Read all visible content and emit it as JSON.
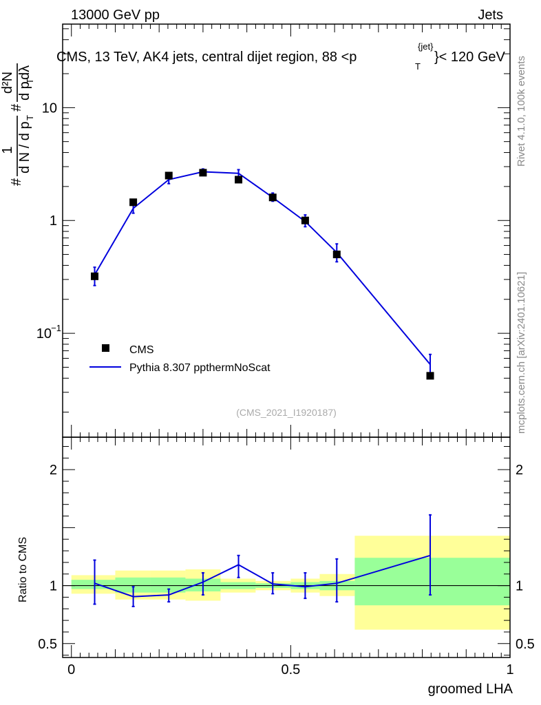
{
  "header": {
    "left": "13000 GeV pp",
    "right": "Jets"
  },
  "plot": {
    "title_main": "CMS, 13 TeV, AK4 jets, central dijet region, 88 <p",
    "title_sub": "T",
    "title_sup": "{jet}",
    "title_end": "}< 120 GeV",
    "analysis_id": "(CMS_2021_I1920187)",
    "side_top": "Rivet 4.1.0,  100k events",
    "side_bottom": "mcplots.cern.ch [arXiv:2401.10621]"
  },
  "ylabel_parts": {
    "hash1": "#",
    "one": "1",
    "denom": "d N / d p",
    "denom_sub": "T",
    "hash2": "#",
    "num": "d²N",
    "den2": "d p",
    "den2_sub": "T",
    "den2_end": " dλ"
  },
  "legend": {
    "cms": "CMS",
    "pythia": "Pythia 8.307 ppthermNoScat"
  },
  "colors": {
    "pythia": "#0000dd",
    "band_inner": "#99ff99",
    "band_outer": "#ffff99",
    "data": "#000000"
  },
  "chart_data": [
    {
      "type": "scatter",
      "panel": "main",
      "ylabel": "1/(dN/dpT) d²N/(dpT dλ)",
      "yscale": "log",
      "ylim": [
        0.012,
        55
      ],
      "xlim": [
        -0.02,
        1.0
      ],
      "y_ticks": [
        "10^-1",
        "1",
        "10"
      ],
      "x": [
        0.053,
        0.141,
        0.222,
        0.3,
        0.381,
        0.459,
        0.533,
        0.605,
        0.818
      ],
      "series": [
        {
          "name": "CMS",
          "values": [
            0.32,
            1.45,
            2.5,
            2.65,
            2.3,
            1.6,
            1.0,
            0.5,
            0.042
          ]
        },
        {
          "name": "Pythia 8.307 ppthermNoScat",
          "values": [
            0.33,
            1.28,
            2.3,
            2.7,
            2.62,
            1.6,
            0.98,
            0.52,
            0.053
          ],
          "err_low": [
            0.265,
            1.16,
            2.12,
            2.52,
            2.42,
            1.48,
            0.88,
            0.43,
            0.041
          ],
          "err_high": [
            0.385,
            1.38,
            2.45,
            2.86,
            2.82,
            1.75,
            1.12,
            0.62,
            0.065
          ]
        }
      ]
    },
    {
      "type": "line",
      "panel": "ratio",
      "xlabel": "groomed LHA",
      "ylabel": "Ratio to CMS",
      "ylim": [
        0.38,
        2.28
      ],
      "xlim": [
        -0.02,
        1.0
      ],
      "x_ticks": [
        "0",
        "0.5",
        "1"
      ],
      "y_ticks": [
        "0.5",
        "1",
        "2"
      ],
      "x": [
        0.053,
        0.141,
        0.222,
        0.3,
        0.381,
        0.459,
        0.533,
        0.605,
        0.818
      ],
      "series": [
        {
          "name": "Pythia 8.307 ppthermNoScat",
          "values": [
            1.02,
            0.905,
            0.92,
            1.03,
            1.18,
            1.015,
            0.99,
            1.02,
            1.26
          ],
          "err_low": [
            0.84,
            0.82,
            0.86,
            0.92,
            1.07,
            0.93,
            0.89,
            0.86,
            0.92
          ],
          "err_high": [
            1.22,
            0.99,
            0.97,
            1.11,
            1.26,
            1.11,
            1.11,
            1.23,
            1.61
          ]
        }
      ],
      "bands": {
        "edges": [
          0.0,
          0.1,
          0.18,
          0.26,
          0.34,
          0.42,
          0.5,
          0.566,
          0.646,
          1.0
        ],
        "inner_low": [
          0.97,
          0.94,
          0.94,
          0.95,
          0.97,
          0.98,
          0.97,
          0.96,
          0.83
        ],
        "inner_high": [
          1.05,
          1.07,
          1.07,
          1.06,
          1.03,
          1.02,
          1.03,
          1.04,
          1.24
        ],
        "outer_low": [
          0.93,
          0.88,
          0.88,
          0.87,
          0.94,
          0.96,
          0.94,
          0.91,
          0.62
        ],
        "outer_high": [
          1.09,
          1.13,
          1.13,
          1.14,
          1.06,
          1.04,
          1.06,
          1.1,
          1.43
        ]
      }
    }
  ]
}
